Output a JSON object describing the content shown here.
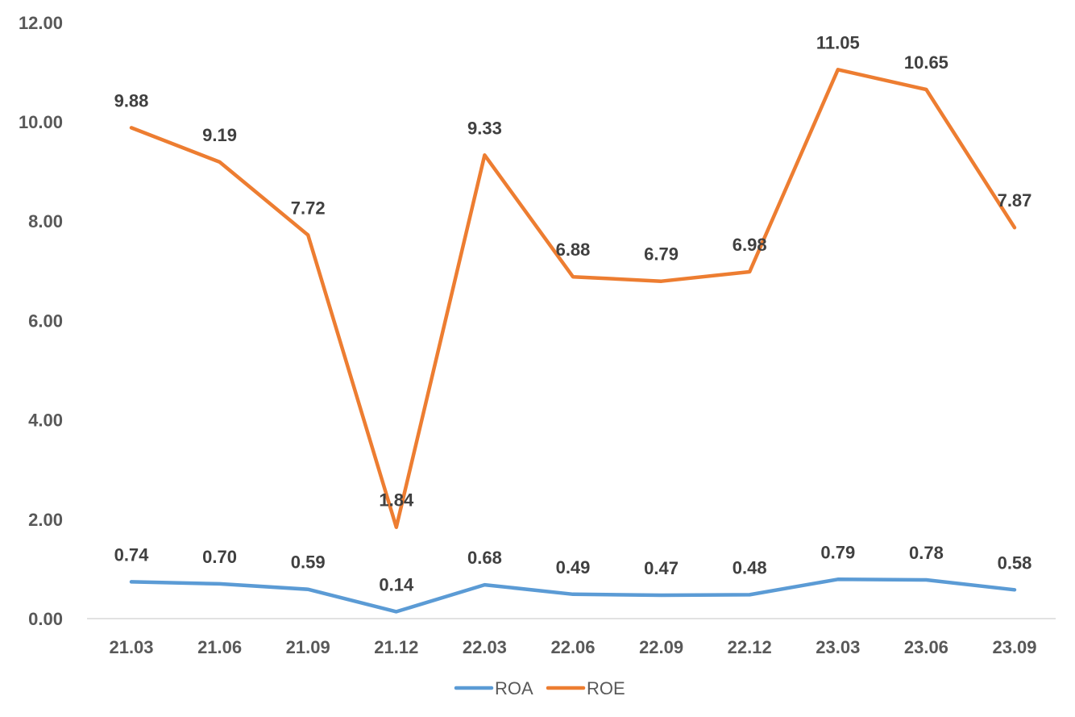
{
  "chart_data": {
    "type": "line",
    "categories": [
      "21.03",
      "21.06",
      "21.09",
      "21.12",
      "22.03",
      "22.06",
      "22.09",
      "22.12",
      "23.03",
      "23.06",
      "23.09"
    ],
    "series": [
      {
        "name": "ROA",
        "color": "#5B9BD5",
        "values": [
          0.74,
          0.7,
          0.59,
          0.14,
          0.68,
          0.49,
          0.47,
          0.48,
          0.79,
          0.78,
          0.58
        ],
        "labels": [
          "0.74",
          "0.70",
          "0.59",
          "0.14",
          "0.68",
          "0.49",
          "0.47",
          "0.48",
          "0.79",
          "0.78",
          "0.58"
        ]
      },
      {
        "name": "ROE",
        "color": "#ED7D31",
        "values": [
          9.88,
          9.19,
          7.72,
          1.84,
          9.33,
          6.88,
          6.79,
          6.98,
          11.05,
          10.65,
          7.87
        ],
        "labels": [
          "9.88",
          "9.19",
          "7.72",
          "1.84",
          "9.33",
          "6.88",
          "6.79",
          "6.98",
          "11.05",
          "10.65",
          "7.87"
        ]
      }
    ],
    "y_ticks": [
      "0.00",
      "2.00",
      "4.00",
      "6.00",
      "8.00",
      "10.00",
      "12.00"
    ],
    "ylim": [
      0,
      12
    ],
    "grid": false,
    "legend_position": "bottom",
    "title": "",
    "xlabel": "",
    "ylabel": ""
  }
}
